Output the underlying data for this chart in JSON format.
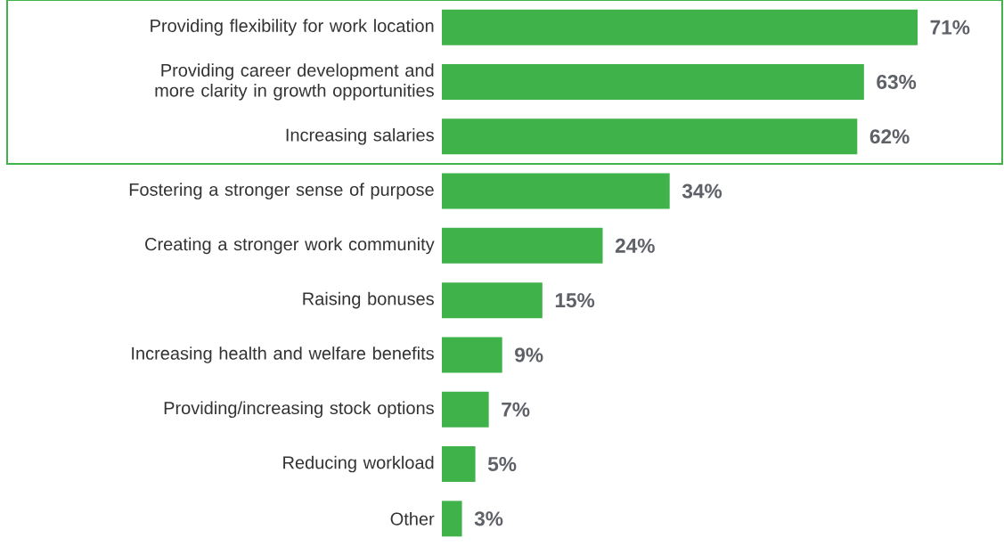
{
  "chart_data": {
    "type": "bar",
    "orientation": "horizontal",
    "categories": [
      "Providing flexibility for work location",
      "Providing career development and more clarity in growth opportunities",
      "Increasing salaries",
      "Fostering a stronger sense of purpose",
      "Creating a stronger work community",
      "Raising bonuses",
      "Increasing health and welfare benefits",
      "Providing/increasing stock options",
      "Reducing workload",
      "Other"
    ],
    "values": [
      71,
      63,
      62,
      34,
      24,
      15,
      9,
      7,
      5,
      3
    ],
    "value_labels": [
      "71%",
      "63%",
      "62%",
      "34%",
      "24%",
      "15%",
      "9%",
      "7%",
      "5%",
      "3%"
    ],
    "color": "#3fb24a"
  }
}
